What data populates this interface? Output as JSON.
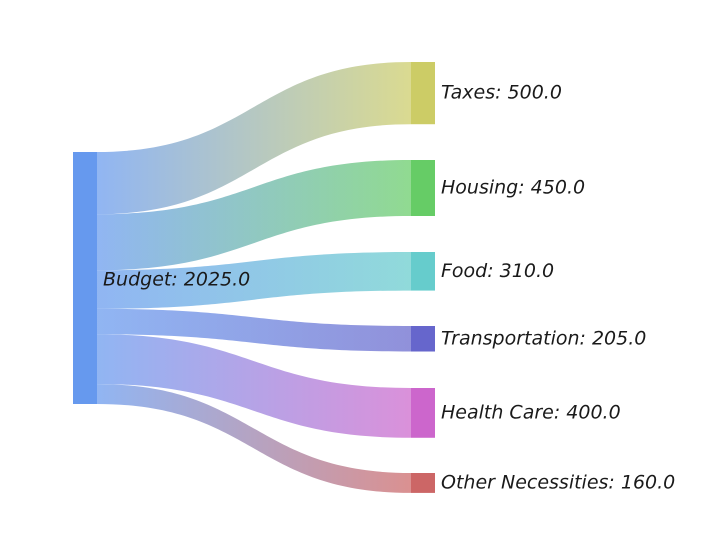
{
  "chart_data": {
    "type": "sankey",
    "source": {
      "name": "Budget",
      "value": 2025.0,
      "color": "#6699ee"
    },
    "targets": [
      {
        "name": "Taxes",
        "value": 500.0,
        "color": "#cccc66"
      },
      {
        "name": "Housing",
        "value": 450.0,
        "color": "#66cc66"
      },
      {
        "name": "Food",
        "value": 310.0,
        "color": "#66cccc"
      },
      {
        "name": "Transportation",
        "value": 205.0,
        "color": "#6666cc"
      },
      {
        "name": "Health Care",
        "value": 400.0,
        "color": "#cc66cc"
      },
      {
        "name": "Other Necessities",
        "value": 160.0,
        "color": "#cc6666"
      }
    ],
    "label_format": "{name}: {value}"
  }
}
